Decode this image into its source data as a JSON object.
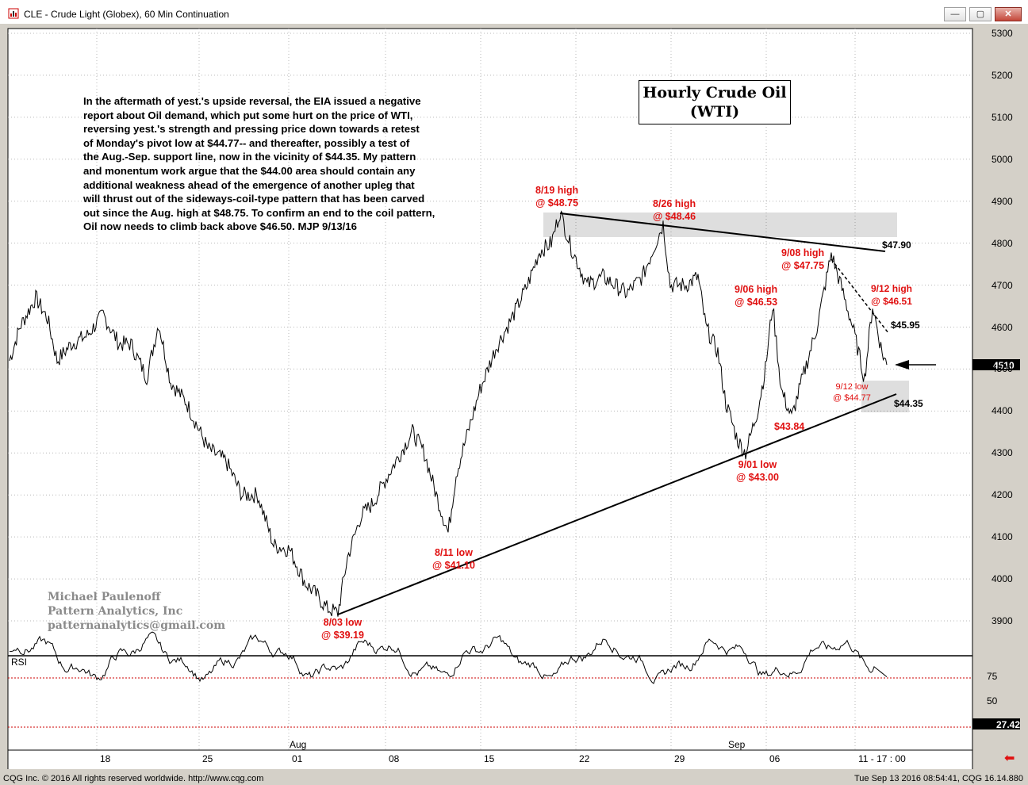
{
  "window": {
    "title": "CLE - Crude Light (Globex), 60 Min Continuation",
    "min_label": "—",
    "max_label": "▢",
    "close_label": "✕"
  },
  "chart_title": {
    "line1": "Hourly Crude Oil",
    "line2": "(WTI)"
  },
  "commentary": [
    "In the aftermath of yest.'s upside reversal, the EIA issued a negative",
    "report about Oil demand, which put some hurt on the price of WTI,",
    "reversing yest.'s strength and pressing price down towards a retest",
    "of Monday's pivot low at $44.77-- and thereafter, possibly a test of",
    "the Aug.-Sep. support line, now in the vicinity of $44.35. My pattern",
    "and monentum work argue that the $44.00 area should contain any",
    "additional weakness ahead of the emergence of another upleg that",
    "will thrust out of the sideways-coil-type pattern that has been carved",
    "out since the Aug. high at $48.75. To confirm an end to the coil pattern,",
    "Oil now needs to climb back above $46.50. MJP 9/13/16"
  ],
  "watermark": {
    "name": "Michael Paulenoff",
    "company": "Pattern Analytics, Inc",
    "email": "patternanalytics@gmail.com"
  },
  "annotations": {
    "aug19": {
      "line1": "8/19 high",
      "line2": "@ $48.75"
    },
    "aug26": {
      "line1": "8/26 high",
      "line2": "@ $48.46"
    },
    "sep08": {
      "line1": "9/08 high",
      "line2": "@ $47.75"
    },
    "sep06": {
      "line1": "9/06 high",
      "line2": "@ $46.53"
    },
    "sep12h": {
      "line1": "9/12 high",
      "line2": "@ $46.51"
    },
    "sep12l": {
      "line1": "9/12 low",
      "line2": "@ $44.77"
    },
    "sep01": {
      "line1": "9/01 low",
      "line2": "@ $43.00"
    },
    "aug11": {
      "line1": "8/11 low",
      "line2": "@ $41.10"
    },
    "aug03": {
      "line1": "8/03 low",
      "line2": "@ $39.19"
    },
    "p4384": "$43.84"
  },
  "levels": {
    "l4790": "$47.90",
    "l4595": "$45.95",
    "l4435": "$44.35"
  },
  "price_axis": {
    "ticks": [
      "5300",
      "5200",
      "5100",
      "5000",
      "4900",
      "4800",
      "4700",
      "4600",
      "4500",
      "4400",
      "4300",
      "4200",
      "4100",
      "4000",
      "3900"
    ],
    "last_price": "4510"
  },
  "rsi": {
    "label": "RSI",
    "ticks": [
      "75",
      "50"
    ],
    "last": "27.42"
  },
  "time_axis": {
    "days": [
      "18",
      "25",
      "01",
      "08",
      "15",
      "22",
      "29",
      "06",
      "11 - 17 : 00"
    ],
    "months": [
      "Aug",
      "Sep"
    ]
  },
  "footer": {
    "left": "CQG Inc. © 2016 All rights reserved worldwide. http://www.cqg.com",
    "right": "Tue Sep 13 2016 08:54:41, CQG 16.14.880"
  },
  "chart_data": {
    "type": "line",
    "title": "Hourly Crude Oil (WTI)",
    "y_range": [
      3860,
      5320
    ],
    "x": [
      "07/13",
      "07/20",
      "07/27",
      "08/01",
      "08/03",
      "08/08",
      "08/11",
      "08/15",
      "08/19",
      "08/22",
      "08/26",
      "08/29",
      "09/01",
      "09/06",
      "09/08",
      "09/09",
      "09/12",
      "09/13"
    ],
    "values": [
      4550,
      4590,
      4300,
      4180,
      3919,
      4250,
      4110,
      4400,
      4875,
      4700,
      4846,
      4690,
      4300,
      4653,
      4775,
      4600,
      4477,
      4510
    ],
    "key_levels": [
      4875,
      4846,
      4775,
      4653,
      4651,
      4477,
      4300,
      4110,
      3919,
      4384
    ],
    "rsi": {
      "range": [
        0,
        100
      ],
      "overbought": 75,
      "oversold": 25,
      "last": 27.42
    },
    "colors": {
      "price": "#000000",
      "annotation": "#e01010",
      "rsi_levels": "#c00000"
    }
  }
}
